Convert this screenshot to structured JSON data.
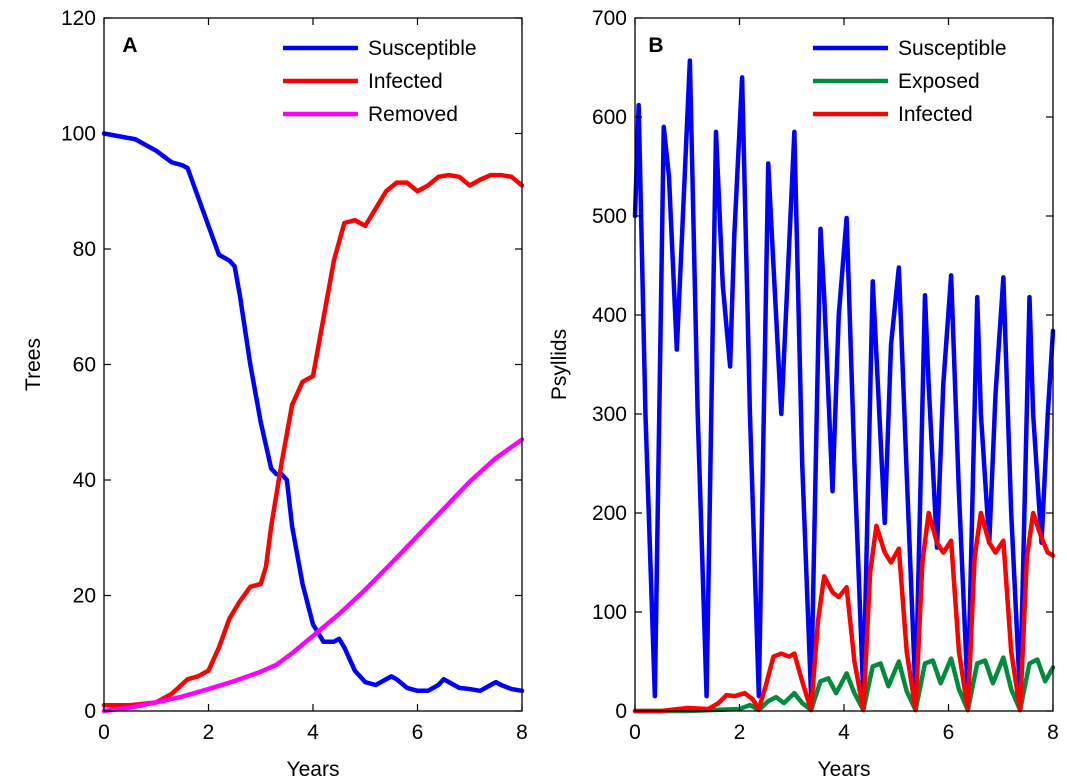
{
  "chart_data": [
    {
      "type": "line",
      "panel_label": "A",
      "xlabel": "Years",
      "ylabel": "Trees",
      "xlim": [
        0,
        8
      ],
      "ylim": [
        0,
        120
      ],
      "xticks": [
        0,
        2,
        4,
        6,
        8
      ],
      "yticks": [
        0,
        20,
        40,
        60,
        80,
        100,
        120
      ],
      "grid": false,
      "legend_position": "top-right",
      "series": [
        {
          "name": "Susceptible",
          "color": "#0000ff",
          "x": [
            0,
            0.3,
            0.6,
            1.0,
            1.3,
            1.5,
            1.6,
            1.8,
            2.0,
            2.2,
            2.4,
            2.5,
            2.6,
            2.8,
            3.0,
            3.2,
            3.3,
            3.4,
            3.5,
            3.6,
            3.8,
            4.0,
            4.2,
            4.4,
            4.5,
            4.6,
            4.8,
            5.0,
            5.2,
            5.4,
            5.5,
            5.6,
            5.8,
            6.0,
            6.2,
            6.4,
            6.5,
            6.6,
            6.8,
            7.0,
            7.2,
            7.4,
            7.5,
            7.6,
            7.8,
            8.0
          ],
          "y": [
            100,
            99.5,
            99,
            97,
            95,
            94.5,
            94,
            89,
            84,
            79,
            78,
            77,
            72,
            60,
            50,
            42,
            41,
            41,
            40,
            32,
            22,
            15,
            12,
            12,
            12.5,
            11,
            7,
            5,
            4.5,
            5.5,
            6,
            5.5,
            4,
            3.5,
            3.5,
            4.5,
            5.5,
            5,
            4,
            3.8,
            3.5,
            4.5,
            5,
            4.5,
            3.8,
            3.5
          ]
        },
        {
          "name": "Infected",
          "color": "#ff0000",
          "x": [
            0,
            0.5,
            1.0,
            1.3,
            1.6,
            1.8,
            2.0,
            2.2,
            2.4,
            2.6,
            2.8,
            3.0,
            3.1,
            3.2,
            3.4,
            3.6,
            3.8,
            4.0,
            4.2,
            4.4,
            4.6,
            4.8,
            5.0,
            5.2,
            5.4,
            5.6,
            5.8,
            6.0,
            6.2,
            6.4,
            6.6,
            6.8,
            7.0,
            7.2,
            7.4,
            7.6,
            7.8,
            8.0
          ],
          "y": [
            1,
            1,
            1.5,
            3,
            5.5,
            6,
            7,
            11,
            16,
            19,
            21.5,
            22,
            25,
            32,
            43,
            53,
            57,
            58,
            68,
            78,
            84.5,
            85,
            84,
            87,
            90,
            91.5,
            91.5,
            90,
            91,
            92.5,
            92.8,
            92.5,
            91,
            92,
            92.8,
            92.8,
            92.5,
            91
          ]
        },
        {
          "name": "Removed",
          "color": "#ff00ff",
          "x": [
            0,
            0.5,
            1.0,
            1.5,
            2.0,
            2.5,
            3.0,
            3.3,
            3.6,
            4.0,
            4.5,
            5.0,
            5.5,
            6.0,
            6.5,
            7.0,
            7.5,
            8.0
          ],
          "y": [
            0,
            0.6,
            1.5,
            2.5,
            3.8,
            5.2,
            6.8,
            8,
            10,
            13,
            16.8,
            21,
            25.6,
            30.3,
            35,
            39.7,
            43.8,
            47
          ]
        }
      ]
    },
    {
      "type": "line",
      "panel_label": "B",
      "xlabel": "Years",
      "ylabel": "Psyllids",
      "xlim": [
        0,
        8
      ],
      "ylim": [
        0,
        700
      ],
      "xticks": [
        0,
        2,
        4,
        6,
        8
      ],
      "yticks": [
        0,
        100,
        200,
        300,
        400,
        500,
        600,
        700
      ],
      "grid": false,
      "legend_position": "top-right",
      "series": [
        {
          "name": "Susceptible",
          "color": "#0000ff",
          "x": [
            0,
            0.07,
            0.2,
            0.38,
            0.55,
            0.65,
            0.8,
            0.9,
            1.05,
            1.2,
            1.37,
            1.55,
            1.68,
            1.82,
            1.9,
            2.05,
            2.2,
            2.37,
            2.55,
            2.62,
            2.8,
            2.88,
            3.05,
            3.2,
            3.37,
            3.55,
            3.62,
            3.78,
            3.9,
            4.05,
            4.2,
            4.37,
            4.55,
            4.62,
            4.78,
            4.9,
            5.05,
            5.2,
            5.37,
            5.55,
            5.62,
            5.78,
            5.9,
            6.05,
            6.2,
            6.37,
            6.55,
            6.62,
            6.78,
            6.9,
            7.05,
            7.2,
            7.37,
            7.55,
            7.62,
            7.78,
            7.9,
            8.0
          ],
          "y": [
            500,
            612,
            300,
            15,
            590,
            540,
            365,
            480,
            657,
            300,
            15,
            585,
            430,
            348,
            480,
            640,
            300,
            15,
            553,
            480,
            300,
            390,
            585,
            250,
            15,
            487,
            420,
            222,
            400,
            498,
            250,
            15,
            434,
            360,
            190,
            370,
            448,
            240,
            15,
            420,
            330,
            165,
            330,
            440,
            220,
            15,
            418,
            300,
            170,
            320,
            438,
            200,
            15,
            418,
            300,
            170,
            300,
            384
          ]
        },
        {
          "name": "Exposed",
          "color": "#008c3c",
          "x": [
            0,
            1.0,
            1.5,
            2.0,
            2.2,
            2.37,
            2.55,
            2.7,
            2.85,
            3.05,
            3.2,
            3.37,
            3.55,
            3.7,
            3.85,
            4.05,
            4.2,
            4.37,
            4.55,
            4.7,
            4.85,
            5.05,
            5.2,
            5.37,
            5.55,
            5.7,
            5.85,
            6.05,
            6.2,
            6.37,
            6.55,
            6.7,
            6.85,
            7.05,
            7.2,
            7.37,
            7.55,
            7.7,
            7.85,
            8.0
          ],
          "y": [
            0,
            0,
            1,
            2,
            6,
            1,
            10,
            14,
            8,
            18,
            8,
            1,
            30,
            33,
            18,
            38,
            18,
            1,
            45,
            48,
            25,
            50,
            20,
            1,
            48,
            51,
            28,
            53,
            22,
            1,
            48,
            51,
            28,
            54,
            22,
            1,
            48,
            52,
            30,
            44
          ]
        },
        {
          "name": "Infected",
          "color": "#ff0000",
          "x": [
            0,
            0.5,
            1.0,
            1.4,
            1.6,
            1.75,
            1.9,
            2.1,
            2.25,
            2.37,
            2.5,
            2.65,
            2.8,
            2.95,
            3.05,
            3.2,
            3.37,
            3.5,
            3.62,
            3.78,
            3.9,
            4.05,
            4.2,
            4.37,
            4.5,
            4.62,
            4.78,
            4.9,
            5.05,
            5.2,
            5.37,
            5.5,
            5.62,
            5.78,
            5.9,
            6.05,
            6.2,
            6.37,
            6.5,
            6.62,
            6.78,
            6.9,
            7.05,
            7.2,
            7.37,
            7.5,
            7.62,
            7.78,
            7.9,
            8.0
          ],
          "y": [
            0,
            0,
            3,
            2,
            8,
            16,
            15,
            18,
            12,
            2,
            25,
            55,
            58,
            55,
            58,
            30,
            1,
            90,
            136,
            120,
            115,
            125,
            50,
            1,
            140,
            187,
            160,
            150,
            164,
            60,
            1,
            150,
            200,
            170,
            160,
            172,
            60,
            1,
            155,
            200,
            170,
            160,
            172,
            60,
            1,
            155,
            200,
            175,
            160,
            157
          ]
        }
      ]
    }
  ]
}
